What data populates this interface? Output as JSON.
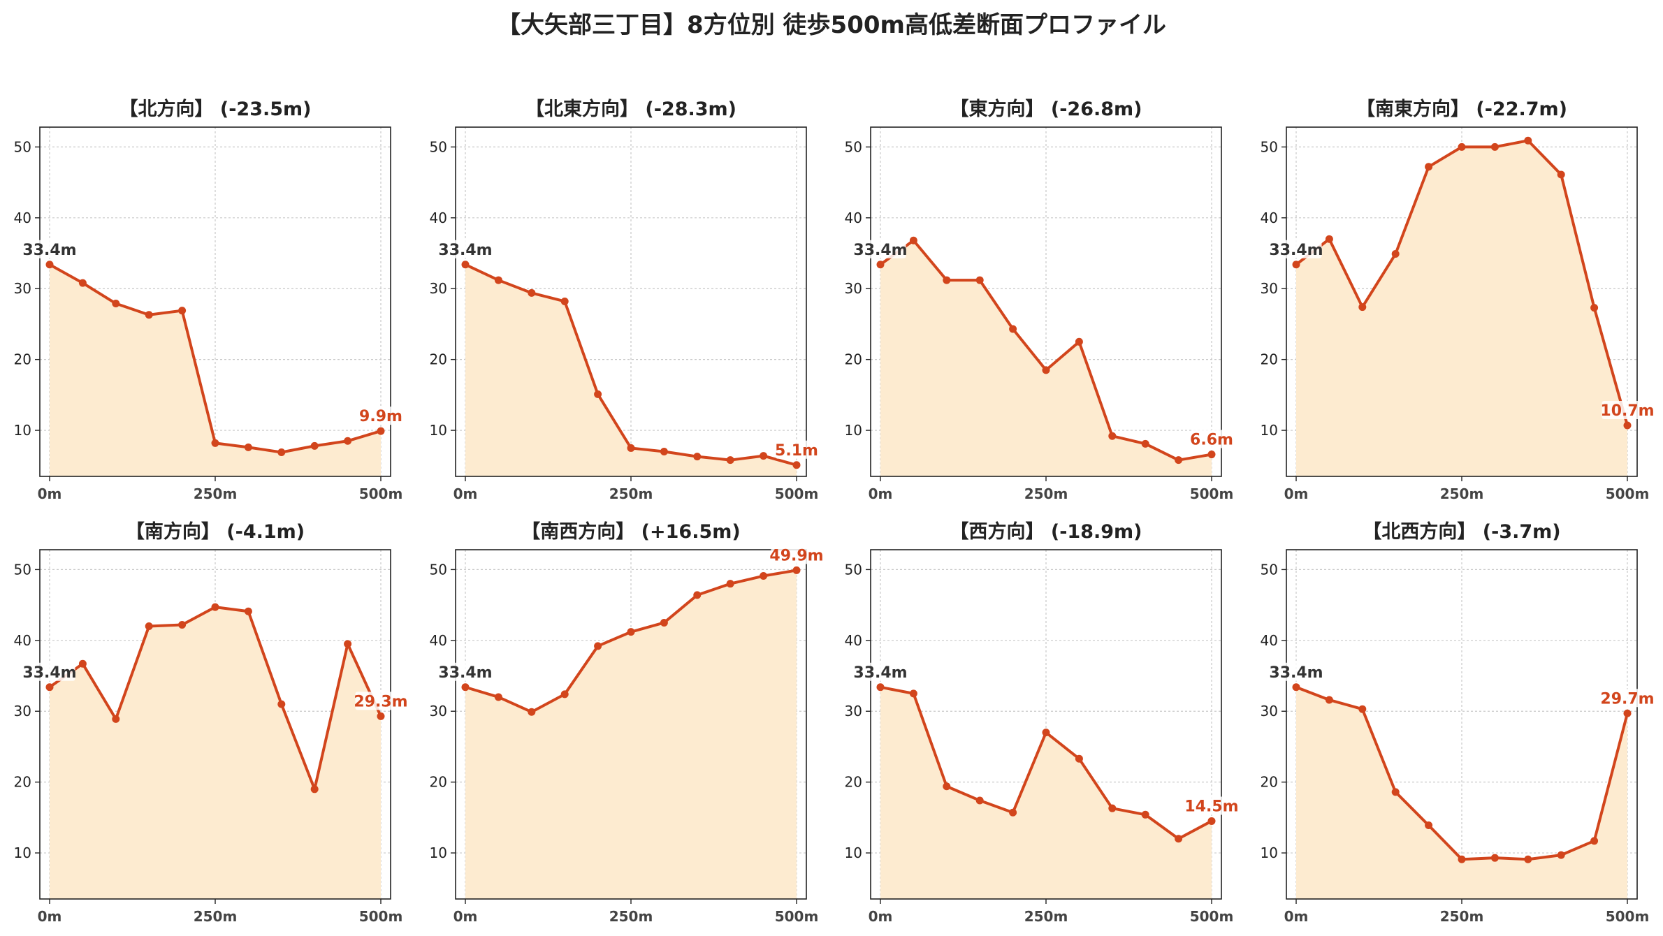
{
  "title": "【大矢部三丁目】8方位別 徒歩500m高低差断面プロファイル",
  "colors": {
    "line": "#d2451c",
    "fill": "#fdebd0",
    "start_label": "#333333",
    "end_label": "#d2451c",
    "grid": "#c8c8c8"
  },
  "chart_data": [
    {
      "type": "area",
      "title": "【北方向】 (-23.5m)",
      "x": [
        0,
        50,
        100,
        150,
        200,
        250,
        300,
        350,
        400,
        450,
        500
      ],
      "y": [
        33.4,
        30.8,
        27.9,
        26.3,
        26.9,
        8.2,
        7.6,
        6.9,
        7.8,
        8.5,
        9.9
      ],
      "start_label": "33.4m",
      "end_label": "9.9m",
      "ylim": [
        3.5,
        52.8
      ],
      "yticks": [
        10,
        20,
        30,
        40,
        50
      ],
      "xticks": [
        "0m",
        "250m",
        "500m"
      ],
      "grid": true
    },
    {
      "type": "area",
      "title": "【北東方向】 (-28.3m)",
      "x": [
        0,
        50,
        100,
        150,
        200,
        250,
        300,
        350,
        400,
        450,
        500
      ],
      "y": [
        33.4,
        31.2,
        29.4,
        28.2,
        15.1,
        7.5,
        7.0,
        6.3,
        5.8,
        6.4,
        5.1
      ],
      "start_label": "33.4m",
      "end_label": "5.1m",
      "ylim": [
        3.5,
        52.8
      ],
      "yticks": [
        10,
        20,
        30,
        40,
        50
      ],
      "xticks": [
        "0m",
        "250m",
        "500m"
      ],
      "grid": true
    },
    {
      "type": "area",
      "title": "【東方向】 (-26.8m)",
      "x": [
        0,
        50,
        100,
        150,
        200,
        250,
        300,
        350,
        400,
        450,
        500
      ],
      "y": [
        33.4,
        36.8,
        31.2,
        31.2,
        24.3,
        18.5,
        22.5,
        9.2,
        8.1,
        5.8,
        6.6
      ],
      "start_label": "33.4m",
      "end_label": "6.6m",
      "ylim": [
        3.5,
        52.8
      ],
      "yticks": [
        10,
        20,
        30,
        40,
        50
      ],
      "xticks": [
        "0m",
        "250m",
        "500m"
      ],
      "grid": true
    },
    {
      "type": "area",
      "title": "【南東方向】 (-22.7m)",
      "x": [
        0,
        50,
        100,
        150,
        200,
        250,
        300,
        350,
        400,
        450,
        500
      ],
      "y": [
        33.4,
        37.0,
        27.4,
        34.9,
        47.2,
        50.0,
        50.0,
        50.9,
        46.1,
        27.3,
        10.7
      ],
      "start_label": "33.4m",
      "end_label": "10.7m",
      "ylim": [
        3.5,
        52.8
      ],
      "yticks": [
        10,
        20,
        30,
        40,
        50
      ],
      "xticks": [
        "0m",
        "250m",
        "500m"
      ],
      "grid": true
    },
    {
      "type": "area",
      "title": "【南方向】 (-4.1m)",
      "x": [
        0,
        50,
        100,
        150,
        200,
        250,
        300,
        350,
        400,
        450,
        500
      ],
      "y": [
        33.4,
        36.7,
        28.9,
        42.0,
        42.2,
        44.7,
        44.1,
        31.0,
        19.0,
        39.5,
        29.3
      ],
      "start_label": "33.4m",
      "end_label": "29.3m",
      "ylim": [
        3.5,
        52.8
      ],
      "yticks": [
        10,
        20,
        30,
        40,
        50
      ],
      "xticks": [
        "0m",
        "250m",
        "500m"
      ],
      "grid": true
    },
    {
      "type": "area",
      "title": "【南西方向】 (+16.5m)",
      "x": [
        0,
        50,
        100,
        150,
        200,
        250,
        300,
        350,
        400,
        450,
        500
      ],
      "y": [
        33.4,
        32.0,
        29.9,
        32.4,
        39.2,
        41.2,
        42.5,
        46.4,
        48.0,
        49.1,
        49.9
      ],
      "start_label": "33.4m",
      "end_label": "49.9m",
      "ylim": [
        3.5,
        52.8
      ],
      "yticks": [
        10,
        20,
        30,
        40,
        50
      ],
      "xticks": [
        "0m",
        "250m",
        "500m"
      ],
      "grid": true
    },
    {
      "type": "area",
      "title": "【西方向】 (-18.9m)",
      "x": [
        0,
        50,
        100,
        150,
        200,
        250,
        300,
        350,
        400,
        450,
        500
      ],
      "y": [
        33.4,
        32.5,
        19.4,
        17.4,
        15.7,
        27.0,
        23.3,
        16.3,
        15.4,
        12.0,
        14.5
      ],
      "start_label": "33.4m",
      "end_label": "14.5m",
      "ylim": [
        3.5,
        52.8
      ],
      "yticks": [
        10,
        20,
        30,
        40,
        50
      ],
      "xticks": [
        "0m",
        "250m",
        "500m"
      ],
      "grid": true
    },
    {
      "type": "area",
      "title": "【北西方向】 (-3.7m)",
      "x": [
        0,
        50,
        100,
        150,
        200,
        250,
        300,
        350,
        400,
        450,
        500
      ],
      "y": [
        33.4,
        31.6,
        30.3,
        18.6,
        13.9,
        9.1,
        9.3,
        9.1,
        9.7,
        11.7,
        29.7
      ],
      "start_label": "33.4m",
      "end_label": "29.7m",
      "ylim": [
        3.5,
        52.8
      ],
      "yticks": [
        10,
        20,
        30,
        40,
        50
      ],
      "xticks": [
        "0m",
        "250m",
        "500m"
      ],
      "grid": true
    }
  ]
}
